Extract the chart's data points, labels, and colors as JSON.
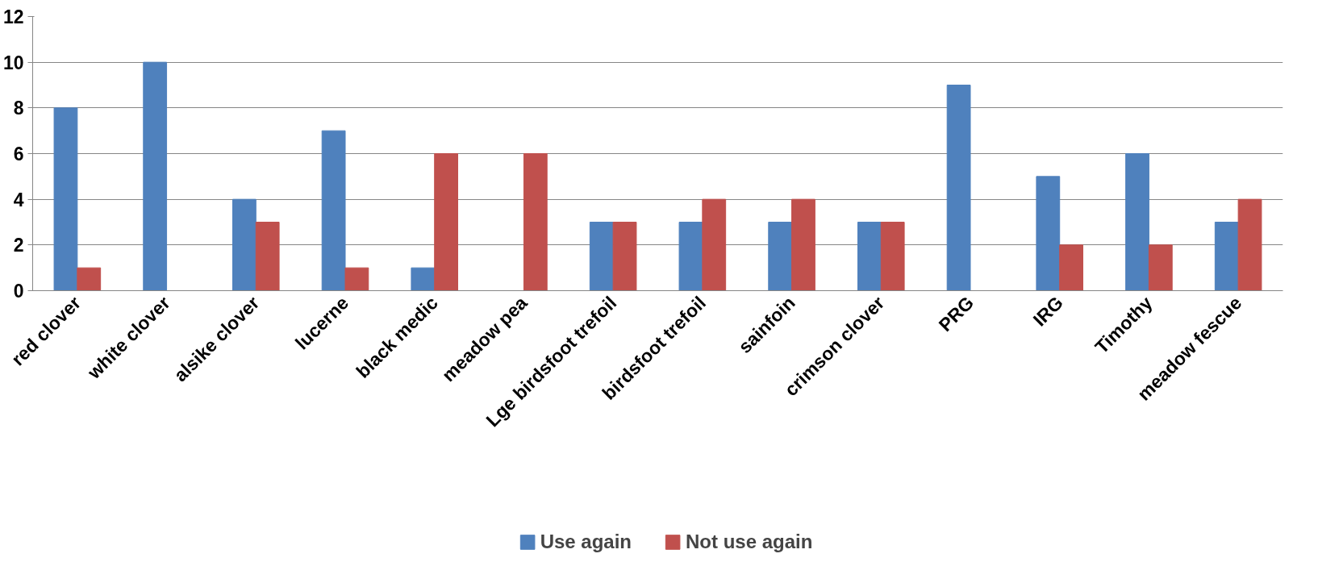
{
  "chart_data": {
    "type": "bar",
    "categories": [
      "red clover",
      "white clover",
      "alsike clover",
      "lucerne",
      "black medic",
      "meadow pea",
      "Lge birdsfoot trefoil",
      "birdsfoot trefoil",
      "sainfoin",
      "crimson clover",
      "PRG",
      "IRG",
      "Timothy",
      "meadow fescue"
    ],
    "series": [
      {
        "name": "Use again",
        "color": "#4f81bd",
        "values": [
          8,
          10,
          4,
          7,
          1,
          0,
          3,
          3,
          3,
          3,
          9,
          5,
          6,
          3
        ]
      },
      {
        "name": "Not use again",
        "color": "#c0504d",
        "values": [
          1,
          0,
          3,
          1,
          6,
          6,
          3,
          4,
          4,
          3,
          0,
          2,
          2,
          4
        ]
      }
    ],
    "ylim": [
      0,
      12
    ],
    "yticks": [
      0,
      2,
      4,
      6,
      8,
      10,
      12
    ],
    "grid": "y",
    "legend": "bottom"
  }
}
